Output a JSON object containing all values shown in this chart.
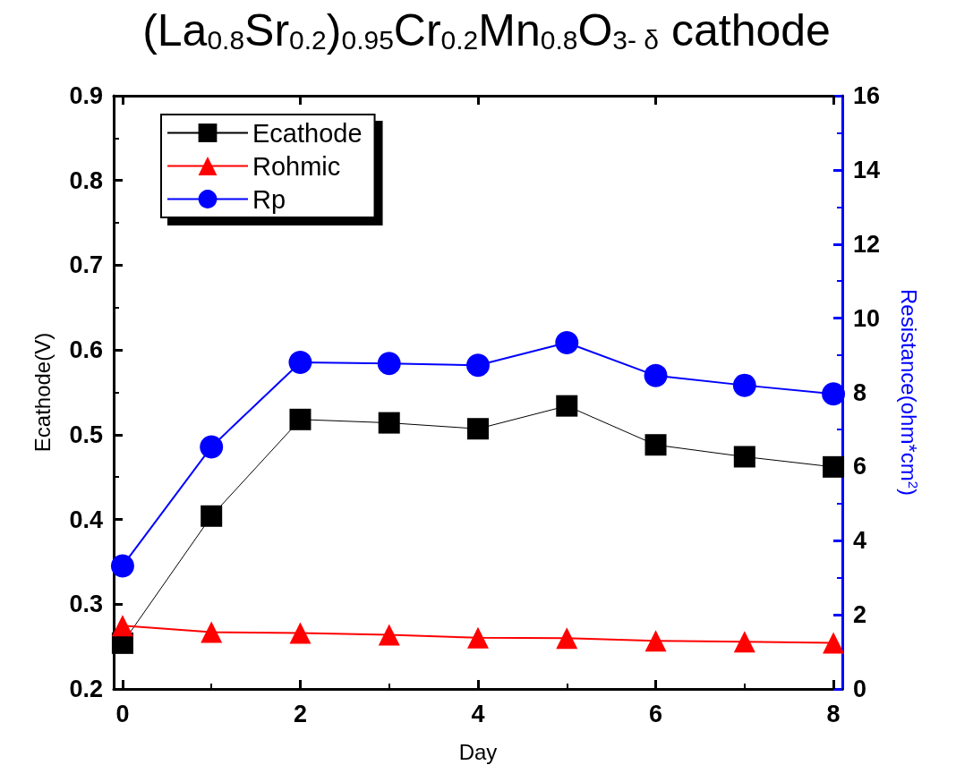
{
  "chart_data": {
    "type": "line",
    "title": "(La$_{0.8}$Sr$_{0.2}$)$_{0.95}$Cr$_{0.2}$Mn$_{0.8}$O$_{3- δ}$ cathode",
    "xlabel": "Day",
    "ylabel": "Ecathode(V)",
    "y2label": "Resistance(ohm*cm$^{2}$)",
    "x": [
      0,
      1,
      2,
      3,
      4,
      5,
      6,
      7,
      8
    ],
    "series": [
      {
        "name": "Ecathode",
        "color": "#000000",
        "marker": "square",
        "values": [
          0.254,
          0.404,
          0.518,
          0.514,
          0.507,
          0.534,
          0.488,
          0.474,
          0.462
        ]
      },
      {
        "name": "Rohmic",
        "color": "#ff0000",
        "marker": "triangle",
        "axis": "y2",
        "values": [
          1.71,
          1.53,
          1.51,
          1.46,
          1.38,
          1.37,
          1.3,
          1.27,
          1.24
        ]
      },
      {
        "name": "Rp",
        "color": "#0000ff",
        "marker": "circle",
        "axis": "y2",
        "values": [
          3.32,
          6.53,
          8.81,
          8.78,
          8.73,
          9.34,
          8.45,
          8.19,
          7.96
        ]
      }
    ],
    "xlim": [
      -0.1,
      8.1
    ],
    "xticks": [
      0,
      2,
      4,
      6,
      8
    ],
    "ylim": [
      0.2,
      0.9
    ],
    "yticks": [
      0.2,
      0.3,
      0.4,
      0.5,
      0.6,
      0.7,
      0.8,
      0.9
    ],
    "y2lim": [
      0,
      16
    ],
    "y2ticks": [
      0,
      2,
      4,
      6,
      8,
      10,
      12,
      14,
      16
    ],
    "legend": "top left",
    "grid": false
  }
}
